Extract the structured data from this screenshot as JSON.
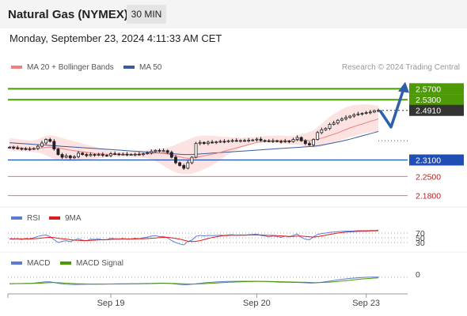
{
  "header": {
    "title": "Natural Gas (NYMEX)",
    "timeframe": "30 MIN"
  },
  "datetime": "Monday, September 23, 2024 4:11:33 AM CET",
  "legend": {
    "ma20_label": "MA 20 + Bollinger Bands",
    "ma50_label": "MA 50",
    "credit": "Research © 2024 Trading Central",
    "rsi_label": "RSI",
    "rsi_ma_label": "9MA",
    "macd_label": "MACD",
    "macd_signal_label": "MACD Signal"
  },
  "colors": {
    "candles": "#222222",
    "ma20": "#f08080",
    "bollinger_fill": "#fde2e2",
    "ma50": "#3a5a9a",
    "resistance": "#4e9a06",
    "support": "#1f4fb5",
    "support_weak": "#e57373",
    "last_price": "#333333",
    "forecast_arrow": "#2e5fa8",
    "rsi": "#5b7bd5",
    "rsi_ma": "#e01b1b",
    "macd": "#5b7bd5",
    "macd_signal": "#4e9a06"
  },
  "chart_data": [
    {
      "type": "candlestick",
      "name": "price",
      "x_ticks": [
        "Sep 19",
        "Sep 20",
        "Sep 23"
      ],
      "ylim": [
        2.15,
        2.62
      ],
      "closes": [
        2.356,
        2.354,
        2.352,
        2.351,
        2.349,
        2.35,
        2.352,
        2.36,
        2.372,
        2.385,
        2.378,
        2.35,
        2.33,
        2.32,
        2.325,
        2.318,
        2.322,
        2.335,
        2.33,
        2.326,
        2.33,
        2.328,
        2.33,
        2.327,
        2.326,
        2.333,
        2.332,
        2.331,
        2.331,
        2.33,
        2.33,
        2.331,
        2.33,
        2.333,
        2.336,
        2.341,
        2.345,
        2.344,
        2.344,
        2.338,
        2.32,
        2.3,
        2.29,
        2.28,
        2.3,
        2.32,
        2.37,
        2.374,
        2.37,
        2.375,
        2.374,
        2.376,
        2.378,
        2.377,
        2.38,
        2.381,
        2.38,
        2.381,
        2.38,
        2.382,
        2.383,
        2.386,
        2.381,
        2.38,
        2.378,
        2.38,
        2.378,
        2.376,
        2.379,
        2.377,
        2.385,
        2.392,
        2.38,
        2.37,
        2.365,
        2.385,
        2.41,
        2.42,
        2.425,
        2.44,
        2.445,
        2.455,
        2.46,
        2.465,
        2.47,
        2.475,
        2.478,
        2.48,
        2.483,
        2.485,
        2.49,
        2.491
      ],
      "ma20": [
        2.36,
        2.358,
        2.356,
        2.354,
        2.352,
        2.351,
        2.351,
        2.352,
        2.354,
        2.356,
        2.357,
        2.356,
        2.354,
        2.351,
        2.348,
        2.346,
        2.344,
        2.342,
        2.34,
        2.338,
        2.336,
        2.334,
        2.333,
        2.332,
        2.331,
        2.331,
        2.33,
        2.33,
        2.33,
        2.33,
        2.33,
        2.33,
        2.331,
        2.332,
        2.333,
        2.334,
        2.335,
        2.335,
        2.334,
        2.332,
        2.329,
        2.325,
        2.321,
        2.318,
        2.316,
        2.316,
        2.319,
        2.322,
        2.325,
        2.328,
        2.331,
        2.334,
        2.338,
        2.342,
        2.346,
        2.35,
        2.354,
        2.358,
        2.362,
        2.366,
        2.37,
        2.374,
        2.376,
        2.378,
        2.379,
        2.38,
        2.38,
        2.38,
        2.38,
        2.38,
        2.381,
        2.383,
        2.383,
        2.382,
        2.381,
        2.382,
        2.386,
        2.39,
        2.394,
        2.399,
        2.404,
        2.409,
        2.415,
        2.421,
        2.427,
        2.432,
        2.437,
        2.441,
        2.446,
        2.451,
        2.455,
        2.46
      ],
      "bollinger_upper": [
        2.39,
        2.388,
        2.386,
        2.384,
        2.382,
        2.381,
        2.382,
        2.386,
        2.392,
        2.398,
        2.4,
        2.398,
        2.394,
        2.39,
        2.386,
        2.382,
        2.378,
        2.374,
        2.37,
        2.366,
        2.362,
        2.358,
        2.354,
        2.35,
        2.346,
        2.344,
        2.342,
        2.34,
        2.34,
        2.34,
        2.34,
        2.341,
        2.342,
        2.344,
        2.346,
        2.348,
        2.35,
        2.351,
        2.352,
        2.355,
        2.36,
        2.366,
        2.372,
        2.378,
        2.384,
        2.39,
        2.395,
        2.398,
        2.399,
        2.399,
        2.398,
        2.397,
        2.396,
        2.395,
        2.394,
        2.393,
        2.392,
        2.392,
        2.392,
        2.393,
        2.394,
        2.395,
        2.396,
        2.397,
        2.398,
        2.399,
        2.399,
        2.399,
        2.398,
        2.397,
        2.398,
        2.402,
        2.405,
        2.408,
        2.412,
        2.418,
        2.43,
        2.442,
        2.455,
        2.468,
        2.478,
        2.487,
        2.495,
        2.502,
        2.507,
        2.51,
        2.512,
        2.513,
        2.513,
        2.512,
        2.51,
        2.508
      ],
      "bollinger_lower": [
        2.345,
        2.344,
        2.343,
        2.342,
        2.341,
        2.34,
        2.339,
        2.337,
        2.333,
        2.327,
        2.32,
        2.314,
        2.31,
        2.308,
        2.306,
        2.305,
        2.305,
        2.306,
        2.308,
        2.31,
        2.312,
        2.314,
        2.316,
        2.318,
        2.32,
        2.321,
        2.322,
        2.322,
        2.322,
        2.322,
        2.321,
        2.32,
        2.319,
        2.318,
        2.316,
        2.312,
        2.306,
        2.298,
        2.289,
        2.28,
        2.272,
        2.265,
        2.26,
        2.258,
        2.258,
        2.26,
        2.265,
        2.27,
        2.276,
        2.283,
        2.291,
        2.3,
        2.31,
        2.32,
        2.33,
        2.339,
        2.347,
        2.354,
        2.36,
        2.365,
        2.369,
        2.372,
        2.374,
        2.375,
        2.375,
        2.374,
        2.373,
        2.371,
        2.369,
        2.367,
        2.366,
        2.365,
        2.363,
        2.36,
        2.357,
        2.356,
        2.357,
        2.36,
        2.364,
        2.369,
        2.374,
        2.379,
        2.384,
        2.389,
        2.394,
        2.398,
        2.402,
        2.405,
        2.408,
        2.411,
        2.413,
        2.415
      ],
      "ma50": [
        2.373,
        2.372,
        2.371,
        2.37,
        2.369,
        2.368,
        2.367,
        2.366,
        2.365,
        2.364,
        2.363,
        2.362,
        2.361,
        2.36,
        2.359,
        2.358,
        2.357,
        2.356,
        2.355,
        2.354,
        2.353,
        2.352,
        2.351,
        2.35,
        2.349,
        2.348,
        2.347,
        2.346,
        2.345,
        2.344,
        2.343,
        2.342,
        2.341,
        2.34,
        2.339,
        2.338,
        2.337,
        2.336,
        2.335,
        2.334,
        2.333,
        2.332,
        2.331,
        2.33,
        2.33,
        2.33,
        2.331,
        2.332,
        2.333,
        2.334,
        2.335,
        2.336,
        2.337,
        2.338,
        2.339,
        2.34,
        2.341,
        2.342,
        2.343,
        2.344,
        2.345,
        2.346,
        2.347,
        2.348,
        2.349,
        2.35,
        2.351,
        2.352,
        2.353,
        2.354,
        2.355,
        2.356,
        2.357,
        2.358,
        2.359,
        2.36,
        2.362,
        2.364,
        2.367,
        2.37,
        2.373,
        2.376,
        2.379,
        2.382,
        2.386,
        2.39,
        2.394,
        2.398,
        2.402,
        2.406,
        2.41,
        2.414
      ],
      "levels": [
        {
          "value": "2.5700",
          "kind": "resistance"
        },
        {
          "value": "2.5300",
          "kind": "resistance"
        },
        {
          "value": "2.4910",
          "kind": "last"
        },
        {
          "value": "2.3100",
          "kind": "support"
        },
        {
          "value": "2.2500",
          "kind": "support_weak"
        },
        {
          "value": "2.1800",
          "kind": "support_weak"
        }
      ]
    },
    {
      "type": "line",
      "name": "rsi",
      "y_ticks": [
        "70",
        "50",
        "30"
      ],
      "ylim": [
        0,
        100
      ],
      "series": [
        {
          "name": "RSI",
          "values": [
            45,
            44,
            46,
            43,
            47,
            46,
            50,
            56,
            60,
            62,
            55,
            42,
            30,
            35,
            38,
            33,
            41,
            45,
            40,
            38,
            44,
            43,
            45,
            41,
            42,
            48,
            46,
            45,
            47,
            44,
            45,
            48,
            46,
            50,
            53,
            57,
            59,
            55,
            56,
            50,
            38,
            30,
            24,
            20,
            34,
            40,
            56,
            60,
            58,
            60,
            59,
            60,
            61,
            60,
            62,
            63,
            60,
            62,
            61,
            63,
            64,
            66,
            60,
            58,
            54,
            58,
            55,
            52,
            57,
            54,
            60,
            66,
            52,
            44,
            41,
            55,
            64,
            68,
            70,
            73,
            74,
            76,
            77,
            78,
            78,
            79,
            80,
            80,
            80,
            81,
            81,
            82
          ]
        },
        {
          "name": "9MA",
          "values": [
            46,
            46,
            46,
            45,
            45,
            45,
            46,
            47,
            49,
            51,
            52,
            51,
            48,
            46,
            44,
            42,
            40,
            39,
            38,
            38,
            39,
            40,
            41,
            42,
            42,
            43,
            44,
            44,
            45,
            45,
            45,
            45,
            46,
            46,
            47,
            48,
            49,
            51,
            52,
            52,
            50,
            47,
            44,
            40,
            36,
            34,
            35,
            38,
            42,
            47,
            51,
            54,
            57,
            59,
            60,
            61,
            61,
            61,
            61,
            62,
            62,
            62,
            62,
            61,
            60,
            60,
            59,
            58,
            57,
            56,
            56,
            57,
            57,
            56,
            54,
            53,
            55,
            58,
            61,
            64,
            67,
            70,
            72,
            74,
            75,
            76,
            77,
            78,
            78,
            79,
            79,
            80
          ]
        }
      ]
    },
    {
      "type": "line",
      "name": "macd",
      "y_ticks": [
        "0"
      ],
      "ylim": [
        -0.02,
        0.03
      ],
      "series": [
        {
          "name": "MACD",
          "values": [
            0.0,
            0.0002,
            0.0004,
            0.0005,
            0.0006,
            0.0008,
            0.0012,
            0.002,
            0.003,
            0.004,
            0.0038,
            0.0025,
            0.001,
            0.0,
            -0.0008,
            -0.0012,
            -0.0014,
            -0.0012,
            -0.0011,
            -0.001,
            -0.0009,
            -0.0008,
            -0.0007,
            -0.0006,
            -0.0005,
            -0.0004,
            -0.0003,
            -0.0002,
            -0.0001,
            0.0,
            0.0001,
            0.0002,
            0.0003,
            0.0004,
            0.0006,
            0.0008,
            0.001,
            0.0012,
            0.0013,
            0.001,
            0.0003,
            -0.0005,
            -0.0012,
            -0.0018,
            -0.0016,
            -0.001,
            0.0,
            0.001,
            0.0018,
            0.0025,
            0.0031,
            0.0036,
            0.004,
            0.0043,
            0.0046,
            0.0048,
            0.0049,
            0.005,
            0.005,
            0.005,
            0.005,
            0.005,
            0.0048,
            0.0045,
            0.0041,
            0.0038,
            0.0035,
            0.0032,
            0.003,
            0.0028,
            0.0027,
            0.0027,
            0.0024,
            0.0019,
            0.0015,
            0.0016,
            0.0022,
            0.003,
            0.004,
            0.0052,
            0.0064,
            0.0076,
            0.0087,
            0.0097,
            0.0106,
            0.0113,
            0.0119,
            0.0124,
            0.0128,
            0.0131,
            0.0133,
            0.0135
          ]
        },
        {
          "name": "MACD Signal",
          "values": [
            0.0002,
            0.0002,
            0.0003,
            0.0003,
            0.0004,
            0.0005,
            0.0006,
            0.0009,
            0.0013,
            0.0018,
            0.0022,
            0.0023,
            0.0021,
            0.0017,
            0.0012,
            0.0007,
            0.0003,
            0.0,
            -0.0002,
            -0.0004,
            -0.0005,
            -0.0006,
            -0.0006,
            -0.0006,
            -0.0006,
            -0.0005,
            -0.0005,
            -0.0004,
            -0.0003,
            -0.0003,
            -0.0002,
            -0.0001,
            0.0,
            0.0001,
            0.0002,
            0.0003,
            0.0004,
            0.0006,
            0.0007,
            0.0008,
            0.0007,
            0.0005,
            0.0002,
            -0.0002,
            -0.0005,
            -0.0006,
            -0.0005,
            -0.0002,
            0.0002,
            0.0007,
            0.0011,
            0.0016,
            0.0021,
            0.0025,
            0.0029,
            0.0033,
            0.0036,
            0.0039,
            0.0041,
            0.0043,
            0.0044,
            0.0046,
            0.0046,
            0.0046,
            0.0045,
            0.0044,
            0.0042,
            0.004,
            0.0038,
            0.0036,
            0.0034,
            0.0033,
            0.0031,
            0.0029,
            0.0026,
            0.0024,
            0.0024,
            0.0025,
            0.0028,
            0.0033,
            0.0039,
            0.0046,
            0.0054,
            0.0063,
            0.0071,
            0.008,
            0.0087,
            0.0095,
            0.0101,
            0.0107,
            0.0112,
            0.0117
          ]
        }
      ]
    }
  ]
}
